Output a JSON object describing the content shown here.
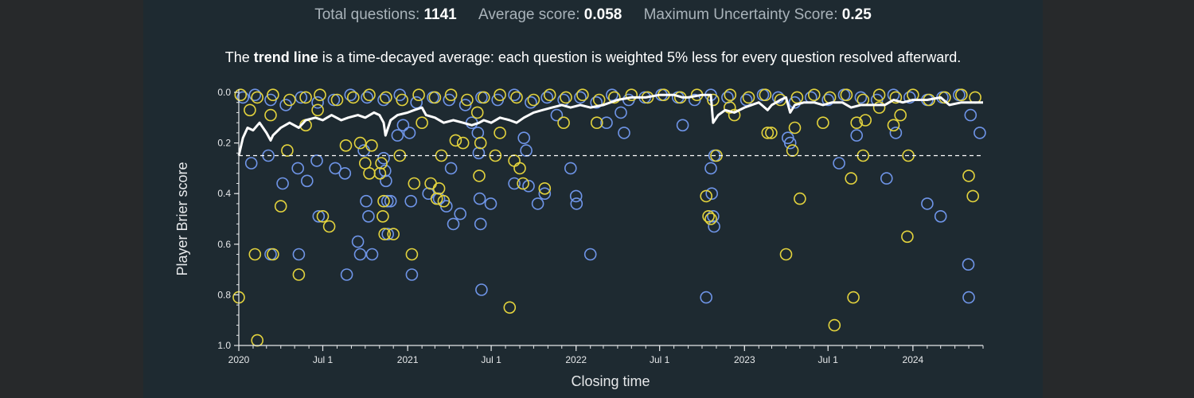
{
  "stats": {
    "total_label": "Total questions:",
    "total_value": "1141",
    "avg_label": "Average score:",
    "avg_value": "0.058",
    "max_label": "Maximum Uncertainty Score:",
    "max_value": "0.25"
  },
  "caption": {
    "pre": "The ",
    "bold": "trend line",
    "post": " is a time-decayed average: each question is weighted 5% less for every question resolved afterward."
  },
  "chart_data": {
    "type": "scatter",
    "xlabel": "Closing time",
    "ylabel": "Player Brier score",
    "xlim": [
      "2020-01-01",
      "2024-06-01"
    ],
    "ylim": [
      0,
      1
    ],
    "y_inverted": true,
    "grid": false,
    "x_ticks": [
      {
        "date": "2020-01-01",
        "label": "2020"
      },
      {
        "date": "2020-07-01",
        "label": "Jul 1"
      },
      {
        "date": "2021-01-01",
        "label": "2021"
      },
      {
        "date": "2021-07-01",
        "label": "Jul 1"
      },
      {
        "date": "2022-01-01",
        "label": "2022"
      },
      {
        "date": "2022-07-01",
        "label": "Jul 1"
      },
      {
        "date": "2023-01-01",
        "label": "2023"
      },
      {
        "date": "2023-07-01",
        "label": "Jul 1"
      },
      {
        "date": "2024-01-01",
        "label": "2024"
      }
    ],
    "y_ticks": [
      {
        "value": 0.0,
        "label": "0.0"
      },
      {
        "value": 0.2,
        "label": "0.2"
      },
      {
        "value": 0.4,
        "label": "0.4"
      },
      {
        "value": 0.6,
        "label": "0.6"
      },
      {
        "value": 0.8,
        "label": "0.8"
      },
      {
        "value": 1.0,
        "label": "1.0"
      }
    ],
    "reference_line": {
      "y": 0.25,
      "style": "dashed",
      "color": "#ffffff"
    },
    "colors": {
      "blue": "#6f95e8",
      "yellow": "#e3d33d",
      "trend": "#ffffff"
    },
    "points_blue": [
      [
        "2020-01-10",
        0.02
      ],
      [
        "2020-02-05",
        0.01
      ],
      [
        "2020-03-10",
        0.03
      ],
      [
        "2020-04-12",
        0.05
      ],
      [
        "2020-05-15",
        0.02
      ],
      [
        "2020-06-20",
        0.04
      ],
      [
        "2020-07-25",
        0.03
      ],
      [
        "2020-08-30",
        0.01
      ],
      [
        "2020-10-05",
        0.02
      ],
      [
        "2020-11-10",
        0.03
      ],
      [
        "2020-12-15",
        0.01
      ],
      [
        "2021-01-20",
        0.04
      ],
      [
        "2021-02-25",
        0.02
      ],
      [
        "2021-04-01",
        0.03
      ],
      [
        "2021-05-06",
        0.05
      ],
      [
        "2021-06-10",
        0.02
      ],
      [
        "2021-07-15",
        0.03
      ],
      [
        "2021-08-20",
        0.01
      ],
      [
        "2021-09-25",
        0.04
      ],
      [
        "2021-10-30",
        0.02
      ],
      [
        "2021-12-05",
        0.03
      ],
      [
        "2022-01-10",
        0.02
      ],
      [
        "2022-02-14",
        0.04
      ],
      [
        "2022-03-20",
        0.01
      ],
      [
        "2022-04-25",
        0.03
      ],
      [
        "2022-05-30",
        0.02
      ],
      [
        "2022-07-05",
        0.01
      ],
      [
        "2022-08-10",
        0.02
      ],
      [
        "2022-09-15",
        0.03
      ],
      [
        "2022-10-20",
        0.01
      ],
      [
        "2022-11-25",
        0.02
      ],
      [
        "2023-01-05",
        0.03
      ],
      [
        "2023-02-10",
        0.01
      ],
      [
        "2023-03-15",
        0.02
      ],
      [
        "2023-04-20",
        0.04
      ],
      [
        "2023-05-25",
        0.02
      ],
      [
        "2023-07-01",
        0.03
      ],
      [
        "2023-08-05",
        0.01
      ],
      [
        "2023-09-10",
        0.02
      ],
      [
        "2023-10-15",
        0.03
      ],
      [
        "2023-11-20",
        0.01
      ],
      [
        "2023-12-25",
        0.02
      ],
      [
        "2024-02-01",
        0.03
      ],
      [
        "2024-03-05",
        0.02
      ],
      [
        "2024-04-10",
        0.01
      ],
      [
        "2020-01-28",
        0.28
      ],
      [
        "2020-03-05",
        0.25
      ],
      [
        "2020-03-10",
        0.64
      ],
      [
        "2020-04-05",
        0.36
      ],
      [
        "2020-05-08",
        0.3
      ],
      [
        "2020-05-10",
        0.64
      ],
      [
        "2020-05-28",
        0.35
      ],
      [
        "2020-06-18",
        0.27
      ],
      [
        "2020-06-22",
        0.49
      ],
      [
        "2020-07-28",
        0.3
      ],
      [
        "2020-08-18",
        0.32
      ],
      [
        "2020-08-22",
        0.72
      ],
      [
        "2020-09-15",
        0.59
      ],
      [
        "2020-09-20",
        0.64
      ],
      [
        "2020-09-28",
        0.23
      ],
      [
        "2020-10-03",
        0.43
      ],
      [
        "2020-10-08",
        0.49
      ],
      [
        "2020-10-16",
        0.64
      ],
      [
        "2020-11-10",
        0.26
      ],
      [
        "2020-11-13",
        0.31
      ],
      [
        "2020-11-15",
        0.35
      ],
      [
        "2020-11-18",
        0.43
      ],
      [
        "2020-11-19",
        0.56
      ],
      [
        "2020-11-25",
        0.43
      ],
      [
        "2020-12-10",
        0.17
      ],
      [
        "2020-12-22",
        0.13
      ],
      [
        "2021-01-05",
        0.16
      ],
      [
        "2021-01-08",
        0.43
      ],
      [
        "2021-01-10",
        0.72
      ],
      [
        "2021-02-15",
        0.4
      ],
      [
        "2021-03-10",
        0.42
      ],
      [
        "2021-03-26",
        0.45
      ],
      [
        "2021-04-05",
        0.3
      ],
      [
        "2021-04-10",
        0.52
      ],
      [
        "2021-04-25",
        0.48
      ],
      [
        "2021-05-20",
        0.12
      ],
      [
        "2021-06-02",
        0.16
      ],
      [
        "2021-06-04",
        0.24
      ],
      [
        "2021-06-06",
        0.42
      ],
      [
        "2021-06-08",
        0.52
      ],
      [
        "2021-06-10",
        0.78
      ],
      [
        "2021-06-30",
        0.44
      ],
      [
        "2021-08-20",
        0.36
      ],
      [
        "2021-09-10",
        0.18
      ],
      [
        "2021-09-15",
        0.23
      ],
      [
        "2021-09-20",
        0.37
      ],
      [
        "2021-10-10",
        0.44
      ],
      [
        "2021-10-25",
        0.4
      ],
      [
        "2021-11-20",
        0.09
      ],
      [
        "2021-12-20",
        0.3
      ],
      [
        "2022-01-01",
        0.41
      ],
      [
        "2022-01-02",
        0.44
      ],
      [
        "2022-02-01",
        0.64
      ],
      [
        "2022-03-08",
        0.12
      ],
      [
        "2022-04-08",
        0.08
      ],
      [
        "2022-04-15",
        0.16
      ],
      [
        "2022-08-20",
        0.13
      ],
      [
        "2022-10-10",
        0.81
      ],
      [
        "2022-10-20",
        0.3
      ],
      [
        "2022-10-22",
        0.4
      ],
      [
        "2022-10-25",
        0.49
      ],
      [
        "2022-10-27",
        0.53
      ],
      [
        "2022-10-28",
        0.25
      ],
      [
        "2023-04-05",
        0.18
      ],
      [
        "2023-04-10",
        0.2
      ],
      [
        "2023-07-25",
        0.28
      ],
      [
        "2023-09-01",
        0.17
      ],
      [
        "2023-11-05",
        0.34
      ],
      [
        "2023-11-25",
        0.16
      ],
      [
        "2024-02-01",
        0.44
      ],
      [
        "2024-03-01",
        0.49
      ],
      [
        "2024-04-30",
        0.68
      ],
      [
        "2024-05-01",
        0.81
      ],
      [
        "2024-05-05",
        0.09
      ],
      [
        "2024-05-25",
        0.16
      ]
    ],
    "points_yellow": [
      [
        "2020-01-05",
        0.01
      ],
      [
        "2020-02-10",
        0.02
      ],
      [
        "2020-03-15",
        0.01
      ],
      [
        "2020-04-20",
        0.03
      ],
      [
        "2020-05-25",
        0.02
      ],
      [
        "2020-06-25",
        0.01
      ],
      [
        "2020-08-01",
        0.03
      ],
      [
        "2020-09-05",
        0.02
      ],
      [
        "2020-10-10",
        0.01
      ],
      [
        "2020-11-15",
        0.02
      ],
      [
        "2020-12-20",
        0.03
      ],
      [
        "2021-01-25",
        0.01
      ],
      [
        "2021-03-01",
        0.02
      ],
      [
        "2021-04-05",
        0.01
      ],
      [
        "2021-05-10",
        0.03
      ],
      [
        "2021-06-15",
        0.02
      ],
      [
        "2021-07-20",
        0.01
      ],
      [
        "2021-08-25",
        0.02
      ],
      [
        "2021-10-01",
        0.03
      ],
      [
        "2021-11-05",
        0.01
      ],
      [
        "2021-12-10",
        0.02
      ],
      [
        "2022-01-15",
        0.01
      ],
      [
        "2022-02-20",
        0.03
      ],
      [
        "2022-03-25",
        0.02
      ],
      [
        "2022-05-01",
        0.01
      ],
      [
        "2022-06-05",
        0.02
      ],
      [
        "2022-07-10",
        0.01
      ],
      [
        "2022-08-15",
        0.02
      ],
      [
        "2022-09-20",
        0.01
      ],
      [
        "2022-10-25",
        0.03
      ],
      [
        "2022-12-01",
        0.01
      ],
      [
        "2023-01-10",
        0.02
      ],
      [
        "2023-02-15",
        0.01
      ],
      [
        "2023-03-20",
        0.03
      ],
      [
        "2023-04-25",
        0.02
      ],
      [
        "2023-06-01",
        0.01
      ],
      [
        "2023-07-05",
        0.02
      ],
      [
        "2023-08-10",
        0.01
      ],
      [
        "2023-09-15",
        0.03
      ],
      [
        "2023-10-20",
        0.01
      ],
      [
        "2023-11-25",
        0.02
      ],
      [
        "2024-01-01",
        0.01
      ],
      [
        "2024-02-05",
        0.03
      ],
      [
        "2024-03-10",
        0.02
      ],
      [
        "2024-04-15",
        0.01
      ],
      [
        "2024-05-15",
        0.02
      ],
      [
        "2020-01-01",
        0.81
      ],
      [
        "2020-01-25",
        0.07
      ],
      [
        "2020-02-05",
        0.64
      ],
      [
        "2020-02-10",
        0.98
      ],
      [
        "2020-03-10",
        0.09
      ],
      [
        "2020-03-15",
        0.64
      ],
      [
        "2020-04-01",
        0.45
      ],
      [
        "2020-04-15",
        0.23
      ],
      [
        "2020-05-10",
        0.72
      ],
      [
        "2020-05-25",
        0.13
      ],
      [
        "2020-06-20",
        0.07
      ],
      [
        "2020-07-01",
        0.49
      ],
      [
        "2020-07-15",
        0.53
      ],
      [
        "2020-08-20",
        0.21
      ],
      [
        "2020-09-20",
        0.2
      ],
      [
        "2020-10-01",
        0.28
      ],
      [
        "2020-10-10",
        0.32
      ],
      [
        "2020-10-15",
        0.21
      ],
      [
        "2020-11-02",
        0.32
      ],
      [
        "2020-11-05",
        0.28
      ],
      [
        "2020-11-08",
        0.49
      ],
      [
        "2020-11-10",
        0.43
      ],
      [
        "2020-11-12",
        0.56
      ],
      [
        "2020-12-01",
        0.56
      ],
      [
        "2020-12-15",
        0.25
      ],
      [
        "2021-01-10",
        0.64
      ],
      [
        "2021-01-15",
        0.36
      ],
      [
        "2021-02-01",
        0.12
      ],
      [
        "2021-02-20",
        0.36
      ],
      [
        "2021-03-05",
        0.42
      ],
      [
        "2021-03-10",
        0.38
      ],
      [
        "2021-03-15",
        0.25
      ],
      [
        "2021-03-20",
        0.43
      ],
      [
        "2021-04-15",
        0.19
      ],
      [
        "2021-05-01",
        0.2
      ],
      [
        "2021-06-01",
        0.08
      ],
      [
        "2021-06-05",
        0.33
      ],
      [
        "2021-06-08",
        0.2
      ],
      [
        "2021-07-10",
        0.25
      ],
      [
        "2021-07-20",
        0.16
      ],
      [
        "2021-08-10",
        0.85
      ],
      [
        "2021-08-20",
        0.27
      ],
      [
        "2021-09-01",
        0.3
      ],
      [
        "2021-09-08",
        0.36
      ],
      [
        "2021-10-25",
        0.38
      ],
      [
        "2021-12-05",
        0.12
      ],
      [
        "2022-02-15",
        0.12
      ],
      [
        "2022-10-10",
        0.41
      ],
      [
        "2022-10-15",
        0.49
      ],
      [
        "2022-10-20",
        0.5
      ],
      [
        "2022-11-01",
        0.25
      ],
      [
        "2022-11-30",
        0.06
      ],
      [
        "2022-12-10",
        0.09
      ],
      [
        "2023-02-20",
        0.16
      ],
      [
        "2023-02-28",
        0.16
      ],
      [
        "2023-04-01",
        0.64
      ],
      [
        "2023-04-15",
        0.23
      ],
      [
        "2023-04-20",
        0.14
      ],
      [
        "2023-05-01",
        0.42
      ],
      [
        "2023-06-20",
        0.12
      ],
      [
        "2023-07-15",
        0.92
      ],
      [
        "2023-08-20",
        0.34
      ],
      [
        "2023-08-25",
        0.81
      ],
      [
        "2023-09-01",
        0.12
      ],
      [
        "2023-09-15",
        0.25
      ],
      [
        "2023-09-20",
        0.11
      ],
      [
        "2023-10-20",
        0.06
      ],
      [
        "2023-11-20",
        0.13
      ],
      [
        "2023-12-05",
        0.09
      ],
      [
        "2023-12-20",
        0.57
      ],
      [
        "2023-12-22",
        0.25
      ],
      [
        "2024-05-01",
        0.33
      ],
      [
        "2024-05-10",
        0.41
      ]
    ],
    "trend_line": [
      [
        "2020-01-01",
        0.25
      ],
      [
        "2020-01-10",
        0.18
      ],
      [
        "2020-01-20",
        0.14
      ],
      [
        "2020-02-01",
        0.15
      ],
      [
        "2020-02-15",
        0.12
      ],
      [
        "2020-03-01",
        0.16
      ],
      [
        "2020-03-10",
        0.19
      ],
      [
        "2020-03-15",
        0.17
      ],
      [
        "2020-04-01",
        0.14
      ],
      [
        "2020-04-20",
        0.12
      ],
      [
        "2020-05-10",
        0.14
      ],
      [
        "2020-05-25",
        0.11
      ],
      [
        "2020-06-15",
        0.1
      ],
      [
        "2020-07-01",
        0.11
      ],
      [
        "2020-07-20",
        0.09
      ],
      [
        "2020-08-10",
        0.11
      ],
      [
        "2020-08-25",
        0.1
      ],
      [
        "2020-09-15",
        0.09
      ],
      [
        "2020-10-01",
        0.1
      ],
      [
        "2020-10-20",
        0.08
      ],
      [
        "2020-11-01",
        0.09
      ],
      [
        "2020-11-10",
        0.12
      ],
      [
        "2020-11-14",
        0.17
      ],
      [
        "2020-11-25",
        0.11
      ],
      [
        "2020-12-10",
        0.09
      ],
      [
        "2021-01-01",
        0.08
      ],
      [
        "2021-01-15",
        0.07
      ],
      [
        "2021-02-01",
        0.06
      ],
      [
        "2021-02-10",
        0.09
      ],
      [
        "2021-03-01",
        0.1
      ],
      [
        "2021-03-20",
        0.12
      ],
      [
        "2021-04-10",
        0.11
      ],
      [
        "2021-05-01",
        0.12
      ],
      [
        "2021-05-20",
        0.13
      ],
      [
        "2021-06-05",
        0.12
      ],
      [
        "2021-06-15",
        0.11
      ],
      [
        "2021-07-01",
        0.12
      ],
      [
        "2021-07-20",
        0.1
      ],
      [
        "2021-08-10",
        0.11
      ],
      [
        "2021-08-25",
        0.12
      ],
      [
        "2021-09-10",
        0.1
      ],
      [
        "2021-10-01",
        0.08
      ],
      [
        "2021-10-20",
        0.07
      ],
      [
        "2021-11-10",
        0.06
      ],
      [
        "2021-12-01",
        0.05
      ],
      [
        "2021-12-20",
        0.06
      ],
      [
        "2022-01-10",
        0.05
      ],
      [
        "2022-02-01",
        0.06
      ],
      [
        "2022-03-01",
        0.05
      ],
      [
        "2022-04-01",
        0.03
      ],
      [
        "2022-05-01",
        0.02
      ],
      [
        "2022-06-01",
        0.02
      ],
      [
        "2022-07-01",
        0.01
      ],
      [
        "2022-08-01",
        0.01
      ],
      [
        "2022-08-20",
        0.02
      ],
      [
        "2022-09-01",
        0.02
      ],
      [
        "2022-10-01",
        0.01
      ],
      [
        "2022-10-20",
        0.01
      ],
      [
        "2022-10-25",
        0.12
      ],
      [
        "2022-11-05",
        0.09
      ],
      [
        "2022-11-20",
        0.07
      ],
      [
        "2022-12-10",
        0.08
      ],
      [
        "2023-01-01",
        0.06
      ],
      [
        "2023-02-01",
        0.04
      ],
      [
        "2023-02-20",
        0.07
      ],
      [
        "2023-03-01",
        0.05
      ],
      [
        "2023-03-20",
        0.03
      ],
      [
        "2023-04-01",
        0.02
      ],
      [
        "2023-04-10",
        0.08
      ],
      [
        "2023-04-20",
        0.05
      ],
      [
        "2023-05-10",
        0.04
      ],
      [
        "2023-06-01",
        0.04
      ],
      [
        "2023-06-20",
        0.05
      ],
      [
        "2023-07-10",
        0.04
      ],
      [
        "2023-08-01",
        0.04
      ],
      [
        "2023-08-20",
        0.06
      ],
      [
        "2023-09-10",
        0.05
      ],
      [
        "2023-10-01",
        0.05
      ],
      [
        "2023-11-01",
        0.05
      ],
      [
        "2023-11-20",
        0.03
      ],
      [
        "2023-12-10",
        0.04
      ],
      [
        "2024-01-01",
        0.03
      ],
      [
        "2024-02-01",
        0.03
      ],
      [
        "2024-03-01",
        0.02
      ],
      [
        "2024-03-20",
        0.05
      ],
      [
        "2024-04-15",
        0.04
      ],
      [
        "2024-05-15",
        0.04
      ],
      [
        "2024-06-01",
        0.04
      ]
    ]
  }
}
